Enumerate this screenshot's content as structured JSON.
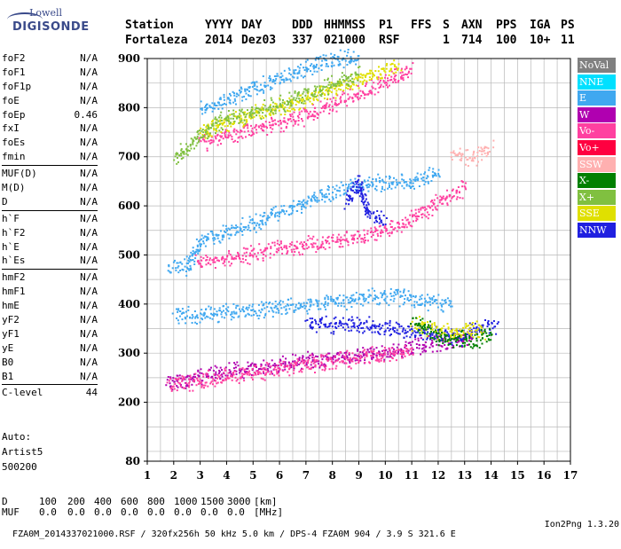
{
  "logo": {
    "top": "Lowell",
    "bottom": "DIGISONDE"
  },
  "header": {
    "labels": [
      "Station",
      "YYYY",
      "DAY",
      "DDD",
      "HHMMSS",
      "P1",
      "FFS",
      "S",
      "AXN",
      "PPS",
      "IGA",
      "PS"
    ],
    "values": [
      "Fortaleza",
      "2014",
      "Dez03",
      "337",
      "021000",
      "RSF",
      "",
      "1",
      "714",
      "100",
      "10+",
      "11"
    ]
  },
  "params": [
    {
      "name": "foF2",
      "value": "N/A"
    },
    {
      "name": "foF1",
      "value": "N/A"
    },
    {
      "name": "foF1p",
      "value": "N/A"
    },
    {
      "name": "foE",
      "value": "N/A"
    },
    {
      "name": "foEp",
      "value": "0.46"
    },
    {
      "name": "fxI",
      "value": "N/A"
    },
    {
      "name": "foEs",
      "value": "N/A"
    },
    {
      "name": "fmin",
      "value": "N/A"
    },
    {
      "sep": true
    },
    {
      "name": "MUF(D)",
      "value": "N/A"
    },
    {
      "name": "M(D)",
      "value": "N/A"
    },
    {
      "name": "D",
      "value": "N/A"
    },
    {
      "sep": true
    },
    {
      "name": "h`F",
      "value": "N/A"
    },
    {
      "name": "h`F2",
      "value": "N/A"
    },
    {
      "name": "h`E",
      "value": "N/A"
    },
    {
      "name": "h`Es",
      "value": "N/A"
    },
    {
      "sep": true
    },
    {
      "name": "hmF2",
      "value": "N/A"
    },
    {
      "name": "hmF1",
      "value": "N/A"
    },
    {
      "name": "hmE",
      "value": "N/A"
    },
    {
      "name": "yF2",
      "value": "N/A"
    },
    {
      "name": "yF1",
      "value": "N/A"
    },
    {
      "name": "yE",
      "value": "N/A"
    },
    {
      "name": "B0",
      "value": "N/A"
    },
    {
      "name": "B1",
      "value": "N/A"
    },
    {
      "sep": true
    },
    {
      "name": "C-level",
      "value": "44"
    }
  ],
  "auto": {
    "label": "Auto:",
    "software": "Artist5",
    "version": "500200"
  },
  "legend": [
    {
      "label": "NoVal",
      "color": "#808080"
    },
    {
      "label": "NNE",
      "color": "#00e0ff"
    },
    {
      "label": "E",
      "color": "#40a8f0"
    },
    {
      "label": "W",
      "color": "#b000b0"
    },
    {
      "label": "Vo-",
      "color": "#ff40a0"
    },
    {
      "label": "Vo+",
      "color": "#ff0040"
    },
    {
      "label": "SSW",
      "color": "#ffb0b0"
    },
    {
      "label": "X-",
      "color": "#008000"
    },
    {
      "label": "X+",
      "color": "#80c040"
    },
    {
      "label": "SSE",
      "color": "#e0e000"
    },
    {
      "label": "NNW",
      "color": "#2020e0"
    }
  ],
  "chart_data": {
    "type": "scatter",
    "x_ticks": [
      1,
      2,
      3,
      4,
      5,
      6,
      7,
      8,
      9,
      10,
      11,
      12,
      13,
      14,
      15,
      16,
      17
    ],
    "y_ticks": [
      80,
      200,
      300,
      400,
      500,
      600,
      700,
      800,
      900
    ],
    "xlim": [
      1,
      17
    ],
    "ylim": [
      80,
      900
    ],
    "grid": true,
    "legend_placement": "right",
    "traces": [
      {
        "color": "#b000b0",
        "points": [
          [
            1.7,
            232
          ],
          [
            2.5,
            238
          ],
          [
            3.5,
            250
          ],
          [
            4.5,
            258
          ],
          [
            5.5,
            265
          ],
          [
            6.5,
            272
          ],
          [
            7.5,
            280
          ],
          [
            8.5,
            285
          ],
          [
            9.5,
            292
          ],
          [
            10.5,
            300
          ],
          [
            11.5,
            308
          ],
          [
            12.5,
            318
          ],
          [
            13.3,
            325
          ]
        ]
      },
      {
        "color": "#ff40a0",
        "points": [
          [
            1.8,
            228
          ],
          [
            3,
            236
          ],
          [
            4,
            244
          ],
          [
            5,
            252
          ],
          [
            6,
            262
          ],
          [
            7,
            270
          ],
          [
            8,
            276
          ],
          [
            9,
            284
          ],
          [
            10,
            292
          ],
          [
            11,
            302
          ]
        ]
      },
      {
        "color": "#40a8f0",
        "points": [
          [
            2,
            370
          ],
          [
            3,
            372
          ],
          [
            4,
            376
          ],
          [
            5,
            380
          ],
          [
            6,
            384
          ],
          [
            7,
            390
          ],
          [
            8,
            396
          ],
          [
            9,
            404
          ],
          [
            10,
            410
          ],
          [
            12.5,
            390
          ]
        ]
      },
      {
        "color": "#2020e0",
        "points": [
          [
            7,
            355
          ],
          [
            8,
            348
          ],
          [
            9,
            352
          ],
          [
            12.8,
            322
          ],
          [
            13.3,
            340
          ],
          [
            14.2,
            350
          ]
        ]
      },
      {
        "color": "#e0e000",
        "points": [
          [
            11,
            350
          ],
          [
            12.6,
            330
          ],
          [
            13.2,
            345
          ],
          [
            13.7,
            330
          ]
        ]
      },
      {
        "color": "#008000",
        "points": [
          [
            11,
            360
          ],
          [
            12.2,
            320
          ],
          [
            13.5,
            320
          ],
          [
            14,
            335
          ]
        ]
      },
      {
        "color": "#ff40a0",
        "points": [
          [
            2.8,
            475
          ],
          [
            4,
            485
          ],
          [
            5,
            495
          ],
          [
            6,
            505
          ],
          [
            7,
            512
          ],
          [
            8,
            520
          ],
          [
            9,
            530
          ],
          [
            10,
            540
          ],
          [
            11,
            565
          ],
          [
            12,
            600
          ],
          [
            13,
            630
          ]
        ]
      },
      {
        "color": "#40a8f0",
        "points": [
          [
            1.8,
            465
          ],
          [
            2.5,
            470
          ],
          [
            3,
            520
          ],
          [
            4,
            540
          ],
          [
            5,
            555
          ],
          [
            6,
            580
          ],
          [
            7,
            600
          ],
          [
            8,
            620
          ],
          [
            9,
            635
          ],
          [
            10,
            640
          ],
          [
            11,
            640
          ],
          [
            12,
            660
          ]
        ]
      },
      {
        "color": "#2020e0",
        "points": [
          [
            8.5,
            600
          ],
          [
            9,
            640
          ],
          [
            9.3,
            580
          ],
          [
            10,
            560
          ]
        ]
      },
      {
        "color": "#ff40a0",
        "points": [
          [
            3,
            720
          ],
          [
            4,
            735
          ],
          [
            5,
            748
          ],
          [
            6,
            760
          ],
          [
            7,
            775
          ],
          [
            8,
            800
          ],
          [
            9,
            820
          ],
          [
            10,
            845
          ],
          [
            11,
            870
          ]
        ]
      },
      {
        "color": "#40a8f0",
        "points": [
          [
            3,
            790
          ],
          [
            4,
            810
          ],
          [
            5,
            830
          ],
          [
            6,
            850
          ],
          [
            7,
            870
          ],
          [
            8,
            890
          ],
          [
            9,
            895
          ]
        ]
      },
      {
        "color": "#ffb0b0",
        "points": [
          [
            12.5,
            700
          ],
          [
            13.3,
            690
          ],
          [
            14,
            710
          ]
        ]
      },
      {
        "color": "#e0e000",
        "points": [
          [
            3,
            742
          ],
          [
            5,
            780
          ],
          [
            7,
            810
          ],
          [
            10.5,
            880
          ]
        ]
      },
      {
        "color": "#80c040",
        "points": [
          [
            2,
            690
          ],
          [
            3.5,
            760
          ],
          [
            6,
            800
          ],
          [
            9,
            860
          ]
        ]
      }
    ]
  },
  "bottom": {
    "d_label": "D",
    "d_values": [
      "100",
      "200",
      "400",
      "600",
      "800",
      "1000",
      "1500",
      "3000",
      "[km]"
    ],
    "muf_label": "MUF",
    "muf_values": [
      "0.0",
      "0.0",
      "0.0",
      "0.0",
      "0.0",
      "0.0",
      "0.0",
      "0.0",
      "[MHz]"
    ],
    "footer": "FZA0M_2014337021000.RSF / 320fx256h 50 kHz 5.0 km / DPS-4 FZA0M 904 / 3.9 S 321.6 E",
    "footer_right": "Ion2Png 1.3.20"
  }
}
